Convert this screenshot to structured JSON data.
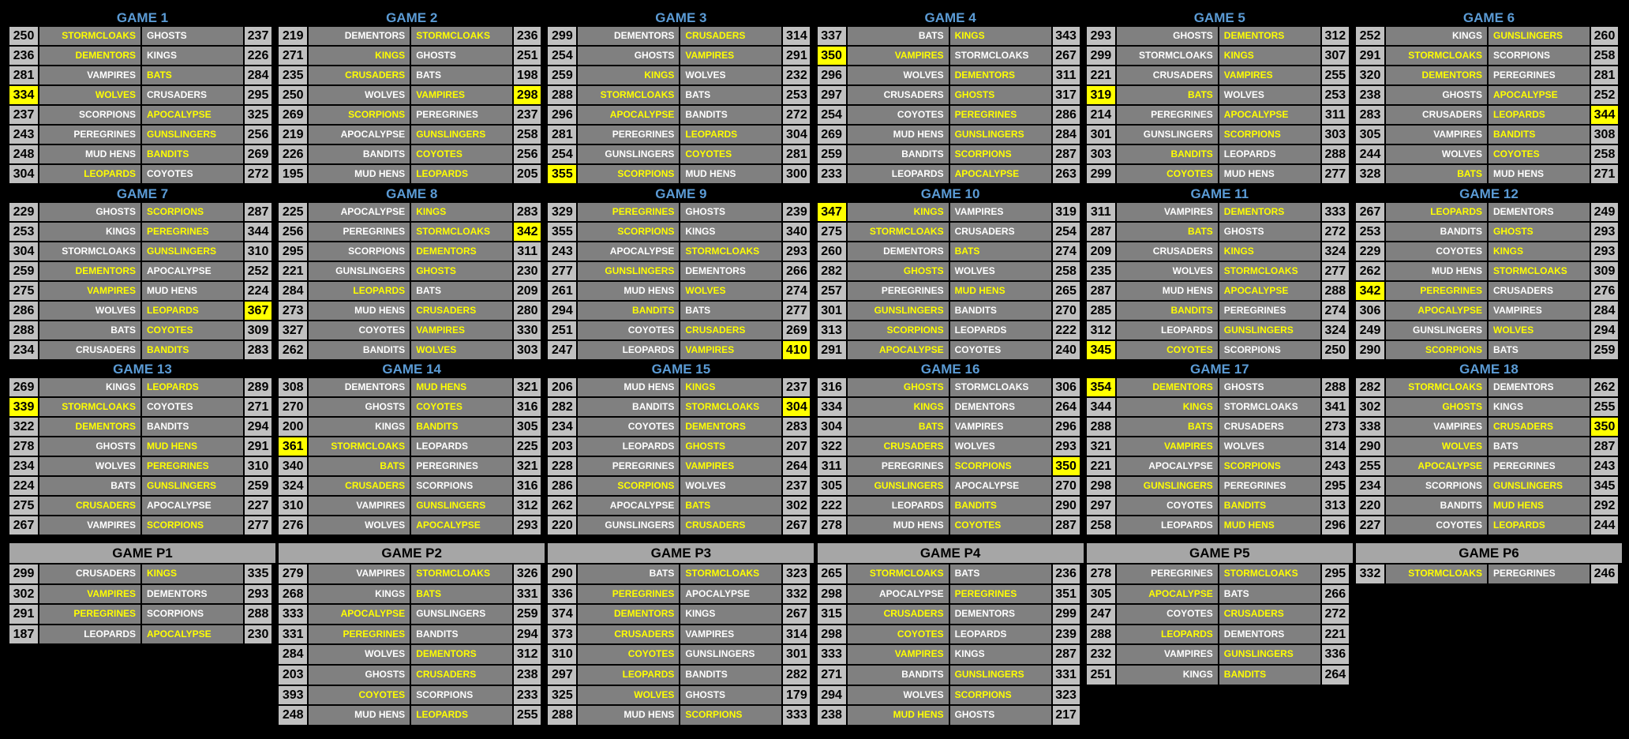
{
  "colors": {
    "title": "#5b9bd5",
    "winner_text": "#ffff00",
    "loser_text": "#ffffff",
    "team_bg": "#808080",
    "score_bg": "#c0c0c0",
    "high_score_bg": "#ffff00",
    "playoff_header_bg": "#a6a6a6"
  },
  "games": [
    {
      "title": "GAME 1",
      "rows": [
        [
          250,
          "STORMCLOAKS",
          "GHOSTS",
          237
        ],
        [
          236,
          "DEMENTORS",
          "KINGS",
          226
        ],
        [
          281,
          "VAMPIRES",
          "BATS",
          284
        ],
        [
          334,
          "WOLVES",
          "CRUSADERS",
          295,
          "L"
        ],
        [
          237,
          "SCORPIONS",
          "APOCALYPSE",
          325
        ],
        [
          243,
          "PEREGRINES",
          "GUNSLINGERS",
          256
        ],
        [
          248,
          "MUD HENS",
          "BANDITS",
          269
        ],
        [
          304,
          "LEOPARDS",
          "COYOTES",
          272
        ]
      ]
    },
    {
      "title": "GAME 2",
      "rows": [
        [
          219,
          "DEMENTORS",
          "STORMCLOAKS",
          236
        ],
        [
          271,
          "KINGS",
          "GHOSTS",
          251
        ],
        [
          235,
          "CRUSADERS",
          "BATS",
          198
        ],
        [
          250,
          "WOLVES",
          "VAMPIRES",
          298,
          "R"
        ],
        [
          269,
          "SCORPIONS",
          "PEREGRINES",
          237
        ],
        [
          219,
          "APOCALYPSE",
          "GUNSLINGERS",
          258
        ],
        [
          226,
          "BANDITS",
          "COYOTES",
          256
        ],
        [
          195,
          "MUD HENS",
          "LEOPARDS",
          205
        ]
      ]
    },
    {
      "title": "GAME 3",
      "rows": [
        [
          299,
          "DEMENTORS",
          "CRUSADERS",
          314
        ],
        [
          254,
          "GHOSTS",
          "VAMPIRES",
          291
        ],
        [
          259,
          "KINGS",
          "WOLVES",
          232
        ],
        [
          288,
          "STORMCLOAKS",
          "BATS",
          253
        ],
        [
          296,
          "APOCALYPSE",
          "BANDITS",
          272
        ],
        [
          281,
          "PEREGRINES",
          "LEOPARDS",
          304
        ],
        [
          254,
          "GUNSLINGERS",
          "COYOTES",
          281
        ],
        [
          355,
          "SCORPIONS",
          "MUD HENS",
          300,
          "L"
        ]
      ]
    },
    {
      "title": "GAME 4",
      "rows": [
        [
          337,
          "BATS",
          "KINGS",
          343
        ],
        [
          350,
          "VAMPIRES",
          "STORMCLOAKS",
          267,
          "L"
        ],
        [
          296,
          "WOLVES",
          "DEMENTORS",
          311
        ],
        [
          297,
          "CRUSADERS",
          "GHOSTS",
          317
        ],
        [
          254,
          "COYOTES",
          "PEREGRINES",
          286
        ],
        [
          269,
          "MUD HENS",
          "GUNSLINGERS",
          284
        ],
        [
          259,
          "BANDITS",
          "SCORPIONS",
          287
        ],
        [
          233,
          "LEOPARDS",
          "APOCALYPSE",
          263
        ]
      ]
    },
    {
      "title": "GAME 5",
      "rows": [
        [
          293,
          "GHOSTS",
          "DEMENTORS",
          312
        ],
        [
          299,
          "STORMCLOAKS",
          "KINGS",
          307
        ],
        [
          221,
          "CRUSADERS",
          "VAMPIRES",
          255
        ],
        [
          319,
          "BATS",
          "WOLVES",
          253,
          "L"
        ],
        [
          214,
          "PEREGRINES",
          "APOCALYPSE",
          311
        ],
        [
          301,
          "GUNSLINGERS",
          "SCORPIONS",
          303
        ],
        [
          303,
          "BANDITS",
          "LEOPARDS",
          288
        ],
        [
          299,
          "COYOTES",
          "MUD HENS",
          277
        ]
      ]
    },
    {
      "title": "GAME 6",
      "rows": [
        [
          252,
          "KINGS",
          "GUNSLINGERS",
          260
        ],
        [
          291,
          "STORMCLOAKS",
          "SCORPIONS",
          258
        ],
        [
          320,
          "DEMENTORS",
          "PEREGRINES",
          281
        ],
        [
          238,
          "GHOSTS",
          "APOCALYPSE",
          252
        ],
        [
          283,
          "CRUSADERS",
          "LEOPARDS",
          344,
          "R"
        ],
        [
          305,
          "VAMPIRES",
          "BANDITS",
          308
        ],
        [
          244,
          "WOLVES",
          "COYOTES",
          258
        ],
        [
          328,
          "BATS",
          "MUD HENS",
          271
        ]
      ]
    },
    {
      "title": "GAME 7",
      "rows": [
        [
          229,
          "GHOSTS",
          "SCORPIONS",
          287
        ],
        [
          253,
          "KINGS",
          "PEREGRINES",
          344
        ],
        [
          304,
          "STORMCLOAKS",
          "GUNSLINGERS",
          310
        ],
        [
          259,
          "DEMENTORS",
          "APOCALYPSE",
          252
        ],
        [
          275,
          "VAMPIRES",
          "MUD HENS",
          224
        ],
        [
          286,
          "WOLVES",
          "LEOPARDS",
          367,
          "R"
        ],
        [
          288,
          "BATS",
          "COYOTES",
          309
        ],
        [
          234,
          "CRUSADERS",
          "BANDITS",
          283
        ]
      ]
    },
    {
      "title": "GAME 8",
      "rows": [
        [
          225,
          "APOCALYPSE",
          "KINGS",
          283
        ],
        [
          256,
          "PEREGRINES",
          "STORMCLOAKS",
          342,
          "R"
        ],
        [
          295,
          "SCORPIONS",
          "DEMENTORS",
          311
        ],
        [
          221,
          "GUNSLINGERS",
          "GHOSTS",
          230
        ],
        [
          284,
          "LEOPARDS",
          "BATS",
          209
        ],
        [
          273,
          "MUD HENS",
          "CRUSADERS",
          280
        ],
        [
          327,
          "COYOTES",
          "VAMPIRES",
          330
        ],
        [
          262,
          "BANDITS",
          "WOLVES",
          303
        ]
      ]
    },
    {
      "title": "GAME 9",
      "rows": [
        [
          329,
          "PEREGRINES",
          "GHOSTS",
          239
        ],
        [
          355,
          "SCORPIONS",
          "KINGS",
          340
        ],
        [
          243,
          "APOCALYPSE",
          "STORMCLOAKS",
          293
        ],
        [
          277,
          "GUNSLINGERS",
          "DEMENTORS",
          266
        ],
        [
          261,
          "MUD HENS",
          "WOLVES",
          274
        ],
        [
          294,
          "BANDITS",
          "BATS",
          277
        ],
        [
          251,
          "COYOTES",
          "CRUSADERS",
          269
        ],
        [
          247,
          "LEOPARDS",
          "VAMPIRES",
          410,
          "R"
        ]
      ]
    },
    {
      "title": "GAME 10",
      "rows": [
        [
          347,
          "KINGS",
          "VAMPIRES",
          319,
          "L"
        ],
        [
          275,
          "STORMCLOAKS",
          "CRUSADERS",
          254
        ],
        [
          260,
          "DEMENTORS",
          "BATS",
          274
        ],
        [
          282,
          "GHOSTS",
          "WOLVES",
          258
        ],
        [
          257,
          "PEREGRINES",
          "MUD HENS",
          265
        ],
        [
          301,
          "GUNSLINGERS",
          "BANDITS",
          270
        ],
        [
          313,
          "SCORPIONS",
          "LEOPARDS",
          222
        ],
        [
          291,
          "APOCALYPSE",
          "COYOTES",
          240
        ]
      ]
    },
    {
      "title": "GAME 11",
      "rows": [
        [
          311,
          "VAMPIRES",
          "DEMENTORS",
          333
        ],
        [
          287,
          "BATS",
          "GHOSTS",
          272
        ],
        [
          209,
          "CRUSADERS",
          "KINGS",
          324
        ],
        [
          235,
          "WOLVES",
          "STORMCLOAKS",
          277
        ],
        [
          287,
          "MUD HENS",
          "APOCALYPSE",
          288
        ],
        [
          285,
          "BANDITS",
          "PEREGRINES",
          274
        ],
        [
          312,
          "LEOPARDS",
          "GUNSLINGERS",
          324
        ],
        [
          345,
          "COYOTES",
          "SCORPIONS",
          250,
          "L"
        ]
      ]
    },
    {
      "title": "GAME 12",
      "rows": [
        [
          267,
          "LEOPARDS",
          "DEMENTORS",
          249
        ],
        [
          253,
          "BANDITS",
          "GHOSTS",
          293
        ],
        [
          229,
          "COYOTES",
          "KINGS",
          293
        ],
        [
          262,
          "MUD HENS",
          "STORMCLOAKS",
          309
        ],
        [
          342,
          "PEREGRINES",
          "CRUSADERS",
          276,
          "L"
        ],
        [
          306,
          "APOCALYPSE",
          "VAMPIRES",
          284
        ],
        [
          249,
          "GUNSLINGERS",
          "WOLVES",
          294
        ],
        [
          290,
          "SCORPIONS",
          "BATS",
          259
        ]
      ]
    },
    {
      "title": "GAME 13",
      "rows": [
        [
          269,
          "KINGS",
          "LEOPARDS",
          289
        ],
        [
          339,
          "STORMCLOAKS",
          "COYOTES",
          271,
          "L"
        ],
        [
          322,
          "DEMENTORS",
          "BANDITS",
          294
        ],
        [
          278,
          "GHOSTS",
          "MUD HENS",
          291
        ],
        [
          234,
          "WOLVES",
          "PEREGRINES",
          310
        ],
        [
          224,
          "BATS",
          "GUNSLINGERS",
          259
        ],
        [
          275,
          "CRUSADERS",
          "APOCALYPSE",
          227
        ],
        [
          267,
          "VAMPIRES",
          "SCORPIONS",
          277
        ]
      ]
    },
    {
      "title": "GAME 14",
      "rows": [
        [
          308,
          "DEMENTORS",
          "MUD HENS",
          321
        ],
        [
          270,
          "GHOSTS",
          "COYOTES",
          316
        ],
        [
          200,
          "KINGS",
          "BANDITS",
          305
        ],
        [
          361,
          "STORMCLOAKS",
          "LEOPARDS",
          225,
          "L"
        ],
        [
          340,
          "BATS",
          "PEREGRINES",
          321
        ],
        [
          324,
          "CRUSADERS",
          "SCORPIONS",
          316
        ],
        [
          310,
          "VAMPIRES",
          "GUNSLINGERS",
          312
        ],
        [
          276,
          "WOLVES",
          "APOCALYPSE",
          293
        ]
      ]
    },
    {
      "title": "GAME 15",
      "rows": [
        [
          206,
          "MUD HENS",
          "KINGS",
          237
        ],
        [
          282,
          "BANDITS",
          "STORMCLOAKS",
          304,
          "R"
        ],
        [
          234,
          "COYOTES",
          "DEMENTORS",
          283
        ],
        [
          203,
          "LEOPARDS",
          "GHOSTS",
          207
        ],
        [
          228,
          "PEREGRINES",
          "VAMPIRES",
          264
        ],
        [
          286,
          "SCORPIONS",
          "WOLVES",
          237
        ],
        [
          262,
          "APOCALYPSE",
          "BATS",
          302
        ],
        [
          220,
          "GUNSLINGERS",
          "CRUSADERS",
          267
        ]
      ]
    },
    {
      "title": "GAME 16",
      "rows": [
        [
          316,
          "GHOSTS",
          "STORMCLOAKS",
          306
        ],
        [
          334,
          "KINGS",
          "DEMENTORS",
          264
        ],
        [
          304,
          "BATS",
          "VAMPIRES",
          296
        ],
        [
          322,
          "CRUSADERS",
          "WOLVES",
          293
        ],
        [
          311,
          "PEREGRINES",
          "SCORPIONS",
          350,
          "R"
        ],
        [
          305,
          "GUNSLINGERS",
          "APOCALYPSE",
          270
        ],
        [
          222,
          "LEOPARDS",
          "BANDITS",
          290
        ],
        [
          278,
          "MUD HENS",
          "COYOTES",
          287
        ]
      ]
    },
    {
      "title": "GAME 17",
      "rows": [
        [
          354,
          "DEMENTORS",
          "GHOSTS",
          288,
          "L"
        ],
        [
          344,
          "KINGS",
          "STORMCLOAKS",
          341
        ],
        [
          288,
          "BATS",
          "CRUSADERS",
          273
        ],
        [
          321,
          "VAMPIRES",
          "WOLVES",
          314
        ],
        [
          221,
          "APOCALYPSE",
          "SCORPIONS",
          243
        ],
        [
          298,
          "GUNSLINGERS",
          "PEREGRINES",
          295
        ],
        [
          297,
          "COYOTES",
          "BANDITS",
          313
        ],
        [
          258,
          "LEOPARDS",
          "MUD HENS",
          296
        ]
      ]
    },
    {
      "title": "GAME 18",
      "rows": [
        [
          282,
          "STORMCLOAKS",
          "DEMENTORS",
          262
        ],
        [
          302,
          "GHOSTS",
          "KINGS",
          255
        ],
        [
          338,
          "VAMPIRES",
          "CRUSADERS",
          350,
          "R"
        ],
        [
          290,
          "WOLVES",
          "BATS",
          287
        ],
        [
          255,
          "APOCALYPSE",
          "PEREGRINES",
          243
        ],
        [
          234,
          "SCORPIONS",
          "GUNSLINGERS",
          345
        ],
        [
          220,
          "BANDITS",
          "MUD HENS",
          292
        ],
        [
          227,
          "COYOTES",
          "LEOPARDS",
          244
        ]
      ]
    }
  ],
  "playoffs": [
    {
      "title": "GAME P1",
      "rows": [
        [
          299,
          "CRUSADERS",
          "KINGS",
          335
        ],
        [
          302,
          "VAMPIRES",
          "DEMENTORS",
          293
        ],
        [
          291,
          "PEREGRINES",
          "SCORPIONS",
          288
        ],
        [
          187,
          "LEOPARDS",
          "APOCALYPSE",
          230
        ]
      ]
    },
    {
      "title": "GAME P2",
      "rows": [
        [
          279,
          "VAMPIRES",
          "STORMCLOAKS",
          326
        ],
        [
          268,
          "KINGS",
          "BATS",
          331
        ],
        [
          333,
          "APOCALYPSE",
          "GUNSLINGERS",
          259
        ],
        [
          331,
          "PEREGRINES",
          "BANDITS",
          294
        ],
        [
          284,
          "WOLVES",
          "DEMENTORS",
          312
        ],
        [
          203,
          "GHOSTS",
          "CRUSADERS",
          238
        ],
        [
          393,
          "COYOTES",
          "SCORPIONS",
          233
        ],
        [
          248,
          "MUD HENS",
          "LEOPARDS",
          255
        ]
      ]
    },
    {
      "title": "GAME P3",
      "rows": [
        [
          290,
          "BATS",
          "STORMCLOAKS",
          323
        ],
        [
          336,
          "PEREGRINES",
          "APOCALYPSE",
          332
        ],
        [
          374,
          "DEMENTORS",
          "KINGS",
          267
        ],
        [
          373,
          "CRUSADERS",
          "VAMPIRES",
          314
        ],
        [
          310,
          "COYOTES",
          "GUNSLINGERS",
          301
        ],
        [
          297,
          "LEOPARDS",
          "BANDITS",
          282
        ],
        [
          325,
          "WOLVES",
          "GHOSTS",
          179
        ],
        [
          288,
          "MUD HENS",
          "SCORPIONS",
          333
        ]
      ]
    },
    {
      "title": "GAME P4",
      "rows": [
        [
          265,
          "STORMCLOAKS",
          "BATS",
          236
        ],
        [
          298,
          "APOCALYPSE",
          "PEREGRINES",
          351
        ],
        [
          315,
          "CRUSADERS",
          "DEMENTORS",
          299
        ],
        [
          298,
          "COYOTES",
          "LEOPARDS",
          239
        ],
        [
          333,
          "VAMPIRES",
          "KINGS",
          287
        ],
        [
          271,
          "BANDITS",
          "GUNSLINGERS",
          331
        ],
        [
          294,
          "WOLVES",
          "SCORPIONS",
          323
        ],
        [
          238,
          "MUD HENS",
          "GHOSTS",
          217
        ]
      ]
    },
    {
      "title": "GAME P5",
      "rows": [
        [
          278,
          "PEREGRINES",
          "STORMCLOAKS",
          295
        ],
        [
          305,
          "APOCALYPSE",
          "BATS",
          266
        ],
        [
          247,
          "COYOTES",
          "CRUSADERS",
          272
        ],
        [
          288,
          "LEOPARDS",
          "DEMENTORS",
          221
        ],
        [
          232,
          "VAMPIRES",
          "GUNSLINGERS",
          336
        ],
        [
          251,
          "KINGS",
          "BANDITS",
          264
        ]
      ]
    },
    {
      "title": "GAME P6",
      "rows": [
        [
          332,
          "STORMCLOAKS",
          "PEREGRINES",
          246
        ]
      ]
    }
  ]
}
